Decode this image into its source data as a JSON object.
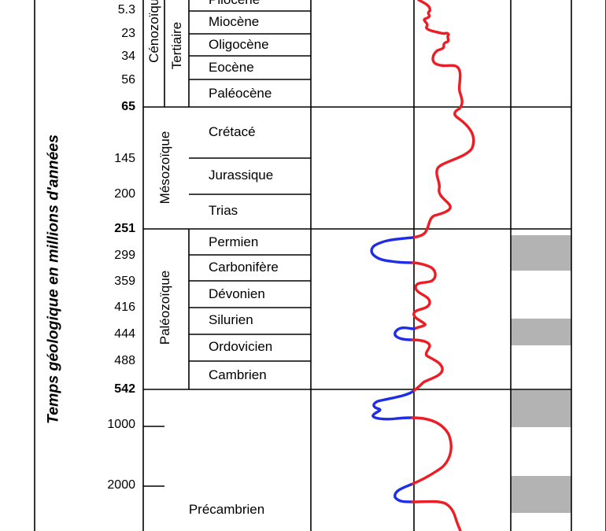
{
  "axis": {
    "ylabel": "Temps géologique en millions d'années",
    "ticks": [
      {
        "label": "5.3",
        "bold": false,
        "y": 5.3
      },
      {
        "label": "23",
        "bold": false,
        "y": 23
      },
      {
        "label": "34",
        "bold": false,
        "y": 34
      },
      {
        "label": "56",
        "bold": false,
        "y": 56
      },
      {
        "label": "65",
        "bold": true,
        "y": 65
      },
      {
        "label": "145",
        "bold": false,
        "y": 145
      },
      {
        "label": "200",
        "bold": false,
        "y": 200
      },
      {
        "label": "251",
        "bold": true,
        "y": 251
      },
      {
        "label": "299",
        "bold": false,
        "y": 299
      },
      {
        "label": "359",
        "bold": false,
        "y": 359
      },
      {
        "label": "416",
        "bold": false,
        "y": 416
      },
      {
        "label": "444",
        "bold": false,
        "y": 444
      },
      {
        "label": "488",
        "bold": false,
        "y": 488
      },
      {
        "label": "542",
        "bold": true,
        "y": 542
      },
      {
        "label": "1000",
        "bold": false,
        "y": 1000
      },
      {
        "label": "2000",
        "bold": false,
        "y": 2000
      }
    ]
  },
  "eras": {
    "cenozoique": "Cénozoïque",
    "tertiaire": "Tertiaire",
    "mesozoique": "Mésozoïque",
    "paleozoique": "Paléozoïque",
    "precambrien": "Précambrien"
  },
  "periods": [
    "Pliocène",
    "Miocène",
    "Oligocène",
    "Eocène",
    "Paléocène",
    "Crétacé",
    "Jurassique",
    "Trias",
    "Permien",
    "Carbonifère",
    "Dévonien",
    "Silurien",
    "Ordovicien",
    "Cambrien"
  ],
  "colors": {
    "warm_curve": "#ee1c25",
    "cold_curve": "#1f2ee6",
    "glaciation_band": "#b3b3b3",
    "lines": "#000000"
  }
}
